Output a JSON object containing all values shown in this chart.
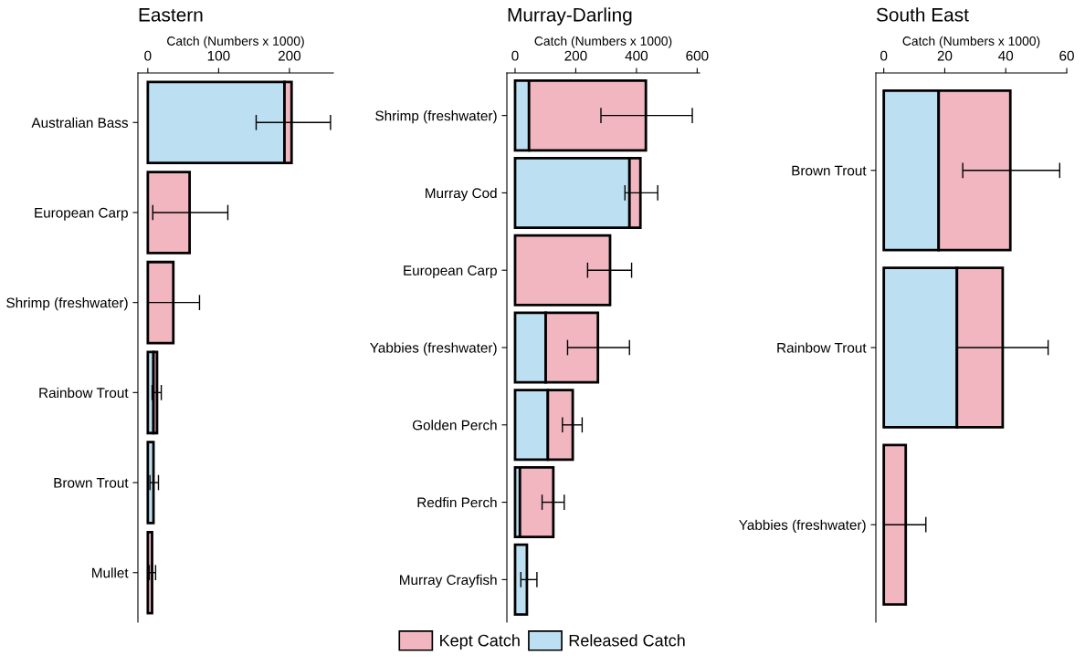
{
  "chart_data": [
    {
      "type": "bar",
      "orientation": "horizontal",
      "stacked": true,
      "title": "Eastern",
      "xlabel": "Catch (Numbers x 1000)",
      "categories": [
        "Australian Bass",
        "European Carp",
        "Shrimp (freshwater)",
        "Rainbow Trout",
        "Brown Trout",
        "Mullet"
      ],
      "xlim": [
        -14,
        262
      ],
      "xticks": [
        0,
        100,
        200
      ],
      "grid": false,
      "legend": "bottom",
      "series": [
        {
          "name": "Released Catch",
          "color": "#bddff2",
          "values": [
            193,
            null,
            null,
            8,
            8,
            null
          ],
          "errors": [
            null,
            null,
            null,
            null,
            [
              3,
              15
            ],
            null
          ]
        },
        {
          "name": "Kept Catch",
          "color": "#f1b6c0",
          "values": [
            10,
            59,
            36,
            5,
            null,
            6
          ],
          "errors": [
            [
              153,
              258
            ],
            [
              7,
              113
            ],
            [
              0,
              73
            ],
            [
              6,
              19
            ],
            null,
            [
              2,
              11
            ]
          ]
        }
      ]
    },
    {
      "type": "bar",
      "orientation": "horizontal",
      "stacked": true,
      "title": "Murray-Darling",
      "xlabel": "Catch (Numbers x 1000)",
      "categories": [
        "Shrimp (freshwater)",
        "Murray Cod",
        "European Carp",
        "Yabbies (freshwater)",
        "Golden Perch",
        "Redfin Perch",
        "Murray Crayfish"
      ],
      "xlim": [
        -27,
        608
      ],
      "xticks": [
        0,
        200,
        400,
        600
      ],
      "grid": false,
      "series": [
        {
          "name": "Released Catch",
          "color": "#bddff2",
          "values": [
            46,
            377,
            null,
            101,
            108,
            16,
            39
          ],
          "errors": [
            null,
            null,
            null,
            null,
            null,
            null,
            [
              19,
              72
            ]
          ]
        },
        {
          "name": "Kept Catch",
          "color": "#f1b6c0",
          "values": [
            385,
            36,
            313,
            172,
            82,
            110,
            null
          ],
          "errors": [
            [
              283,
              584
            ],
            [
              362,
              470
            ],
            [
              239,
              384
            ],
            [
              173,
              377
            ],
            [
              156,
              221
            ],
            [
              89,
              162
            ],
            null
          ]
        }
      ]
    },
    {
      "type": "bar",
      "orientation": "horizontal",
      "stacked": true,
      "title": "South East",
      "xlabel": "Catch (Numbers x 1000)",
      "categories": [
        "Brown Trout",
        "Rainbow Trout",
        "Yabbies (freshwater)"
      ],
      "xlim": [
        -2.6,
        60
      ],
      "xticks": [
        0,
        20,
        40,
        60
      ],
      "grid": false,
      "series": [
        {
          "name": "Released Catch",
          "color": "#bddff2",
          "values": [
            18,
            24,
            null
          ]
        },
        {
          "name": "Kept Catch",
          "color": "#f1b6c0",
          "values": [
            23.5,
            15,
            7.2
          ],
          "errors": [
            [
              25.9,
              57.7
            ],
            [
              24,
              53.9
            ],
            [
              0,
              13.8
            ]
          ]
        }
      ]
    }
  ]
}
